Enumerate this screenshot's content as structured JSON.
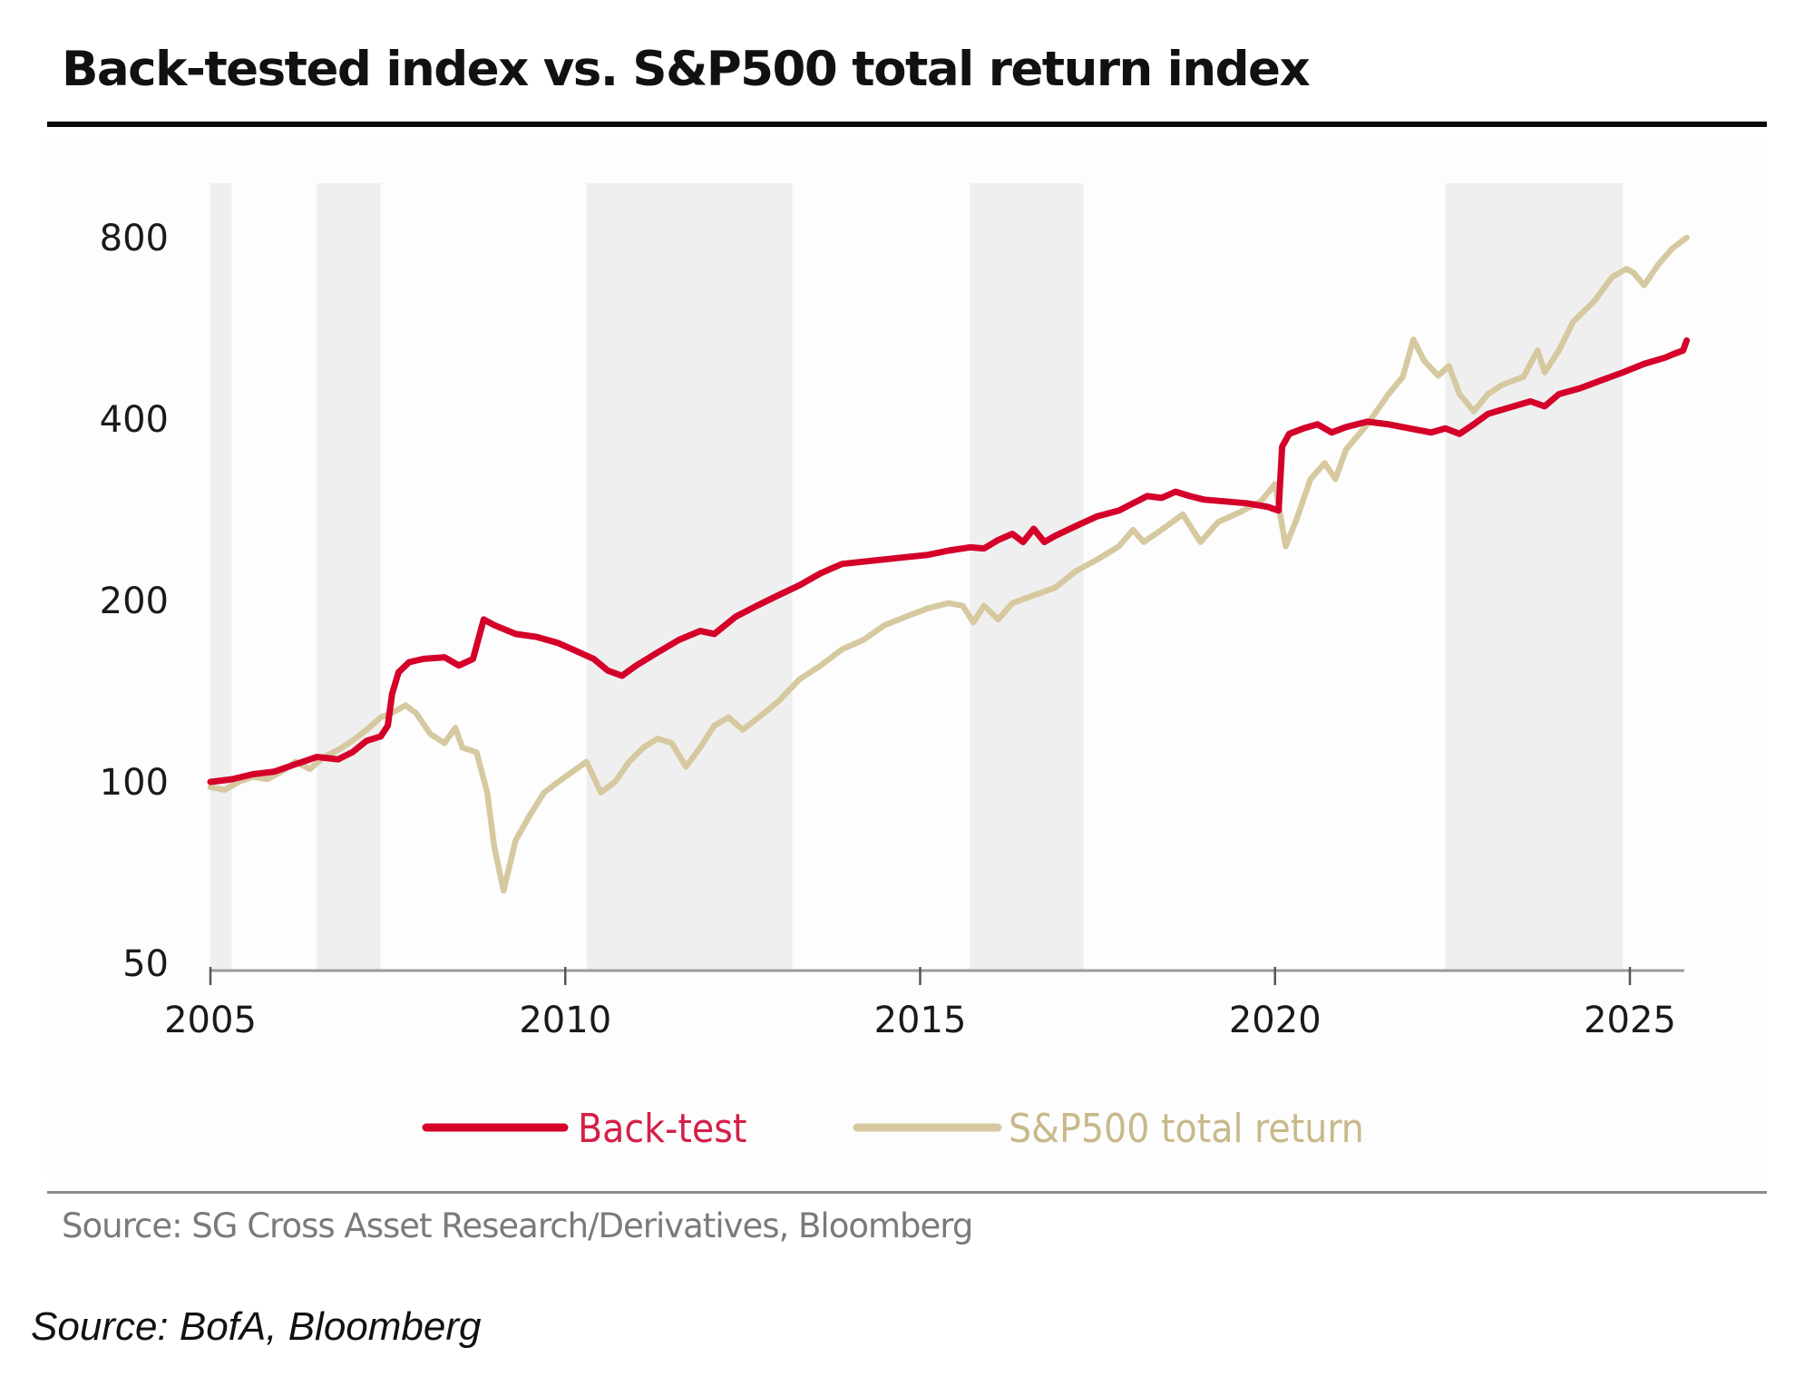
{
  "title": "Back-tested index vs. S&P500 total return index",
  "source_inner": "Source: SG Cross Asset Research/Derivatives, Bloomberg",
  "source_outer": "Source: BofA, Bloomberg",
  "colors": {
    "backtest": "#d4002a",
    "sp500": "#d6c9a0",
    "shading": "#f0eff0",
    "axis": "#9a9a9a"
  },
  "chart_data": {
    "type": "line",
    "title": "Back-tested index vs. S&P500 total return index",
    "xlabel": "",
    "ylabel": "",
    "y_scale": "log",
    "ylim": [
      50,
      800
    ],
    "xlim": [
      2005,
      2025.8
    ],
    "x_ticks": [
      2005,
      2010,
      2015,
      2020,
      2025
    ],
    "x_tick_labels": [
      "2005",
      "2010",
      "2015",
      "2020",
      "2025"
    ],
    "y_ticks": [
      50,
      100,
      200,
      400,
      800
    ],
    "y_tick_labels": [
      "50",
      "100",
      "200",
      "400",
      "800"
    ],
    "grid": false,
    "legend_position": "bottom-center",
    "shaded_periods": [
      [
        2005.0,
        2005.3
      ],
      [
        2006.5,
        2007.4
      ],
      [
        2010.3,
        2013.2
      ],
      [
        2015.7,
        2017.3
      ],
      [
        2022.4,
        2024.9
      ]
    ],
    "series": [
      {
        "name": "Back-test",
        "points": [
          [
            2005.0,
            100
          ],
          [
            2005.3,
            101
          ],
          [
            2005.6,
            103
          ],
          [
            2005.9,
            104
          ],
          [
            2006.2,
            107
          ],
          [
            2006.5,
            110
          ],
          [
            2006.8,
            109
          ],
          [
            2007.0,
            112
          ],
          [
            2007.2,
            117
          ],
          [
            2007.4,
            119
          ],
          [
            2007.5,
            124
          ],
          [
            2007.56,
            140
          ],
          [
            2007.65,
            152
          ],
          [
            2007.8,
            158
          ],
          [
            2008.0,
            160
          ],
          [
            2008.3,
            161
          ],
          [
            2008.5,
            156
          ],
          [
            2008.7,
            160
          ],
          [
            2008.85,
            186
          ],
          [
            2009.0,
            182
          ],
          [
            2009.3,
            176
          ],
          [
            2009.6,
            174
          ],
          [
            2009.9,
            170
          ],
          [
            2010.1,
            166
          ],
          [
            2010.4,
            160
          ],
          [
            2010.6,
            153
          ],
          [
            2010.8,
            150
          ],
          [
            2011.0,
            156
          ],
          [
            2011.3,
            164
          ],
          [
            2011.6,
            172
          ],
          [
            2011.9,
            178
          ],
          [
            2012.1,
            176
          ],
          [
            2012.4,
            188
          ],
          [
            2012.7,
            196
          ],
          [
            2013.0,
            204
          ],
          [
            2013.3,
            212
          ],
          [
            2013.6,
            222
          ],
          [
            2013.9,
            230
          ],
          [
            2014.2,
            232
          ],
          [
            2014.5,
            234
          ],
          [
            2014.8,
            236
          ],
          [
            2015.1,
            238
          ],
          [
            2015.4,
            242
          ],
          [
            2015.7,
            245
          ],
          [
            2015.9,
            244
          ],
          [
            2016.1,
            252
          ],
          [
            2016.3,
            258
          ],
          [
            2016.45,
            250
          ],
          [
            2016.6,
            263
          ],
          [
            2016.75,
            250
          ],
          [
            2016.9,
            256
          ],
          [
            2017.2,
            266
          ],
          [
            2017.5,
            276
          ],
          [
            2017.8,
            282
          ],
          [
            2018.0,
            290
          ],
          [
            2018.2,
            298
          ],
          [
            2018.4,
            296
          ],
          [
            2018.6,
            303
          ],
          [
            2018.8,
            298
          ],
          [
            2019.0,
            294
          ],
          [
            2019.3,
            292
          ],
          [
            2019.6,
            290
          ],
          [
            2019.9,
            286
          ],
          [
            2020.05,
            282
          ],
          [
            2020.1,
            360
          ],
          [
            2020.2,
            378
          ],
          [
            2020.4,
            386
          ],
          [
            2020.6,
            392
          ],
          [
            2020.8,
            380
          ],
          [
            2021.0,
            388
          ],
          [
            2021.3,
            396
          ],
          [
            2021.6,
            392
          ],
          [
            2021.9,
            386
          ],
          [
            2022.2,
            380
          ],
          [
            2022.4,
            386
          ],
          [
            2022.6,
            378
          ],
          [
            2022.8,
            392
          ],
          [
            2023.0,
            408
          ],
          [
            2023.3,
            418
          ],
          [
            2023.6,
            428
          ],
          [
            2023.8,
            420
          ],
          [
            2024.0,
            440
          ],
          [
            2024.3,
            450
          ],
          [
            2024.6,
            464
          ],
          [
            2024.9,
            478
          ],
          [
            2025.2,
            494
          ],
          [
            2025.5,
            506
          ],
          [
            2025.6,
            512
          ],
          [
            2025.75,
            520
          ],
          [
            2025.8,
            540
          ]
        ]
      },
      {
        "name": "S&P500 total return",
        "points": [
          [
            2005.0,
            98
          ],
          [
            2005.2,
            97
          ],
          [
            2005.4,
            100
          ],
          [
            2005.6,
            102
          ],
          [
            2005.8,
            101
          ],
          [
            2006.0,
            104
          ],
          [
            2006.2,
            108
          ],
          [
            2006.4,
            105
          ],
          [
            2006.6,
            110
          ],
          [
            2006.8,
            113
          ],
          [
            2007.0,
            117
          ],
          [
            2007.2,
            122
          ],
          [
            2007.4,
            128
          ],
          [
            2007.55,
            130
          ],
          [
            2007.75,
            134
          ],
          [
            2007.9,
            130
          ],
          [
            2008.1,
            120
          ],
          [
            2008.3,
            116
          ],
          [
            2008.45,
            123
          ],
          [
            2008.55,
            114
          ],
          [
            2008.75,
            112
          ],
          [
            2008.9,
            96
          ],
          [
            2009.0,
            78
          ],
          [
            2009.13,
            66
          ],
          [
            2009.3,
            80
          ],
          [
            2009.5,
            88
          ],
          [
            2009.7,
            96
          ],
          [
            2009.9,
            100
          ],
          [
            2010.1,
            104
          ],
          [
            2010.3,
            108
          ],
          [
            2010.5,
            96
          ],
          [
            2010.7,
            100
          ],
          [
            2010.9,
            108
          ],
          [
            2011.1,
            114
          ],
          [
            2011.3,
            118
          ],
          [
            2011.5,
            116
          ],
          [
            2011.7,
            106
          ],
          [
            2011.9,
            114
          ],
          [
            2012.1,
            124
          ],
          [
            2012.3,
            128
          ],
          [
            2012.5,
            122
          ],
          [
            2012.8,
            130
          ],
          [
            2013.0,
            136
          ],
          [
            2013.3,
            148
          ],
          [
            2013.6,
            156
          ],
          [
            2013.9,
            166
          ],
          [
            2014.2,
            172
          ],
          [
            2014.5,
            182
          ],
          [
            2014.8,
            188
          ],
          [
            2015.1,
            194
          ],
          [
            2015.4,
            198
          ],
          [
            2015.6,
            196
          ],
          [
            2015.75,
            184
          ],
          [
            2015.9,
            196
          ],
          [
            2016.1,
            186
          ],
          [
            2016.3,
            198
          ],
          [
            2016.6,
            204
          ],
          [
            2016.9,
            210
          ],
          [
            2017.2,
            224
          ],
          [
            2017.5,
            234
          ],
          [
            2017.8,
            246
          ],
          [
            2018.0,
            262
          ],
          [
            2018.15,
            250
          ],
          [
            2018.4,
            262
          ],
          [
            2018.7,
            278
          ],
          [
            2018.95,
            250
          ],
          [
            2019.2,
            270
          ],
          [
            2019.5,
            280
          ],
          [
            2019.8,
            292
          ],
          [
            2020.0,
            312
          ],
          [
            2020.15,
            246
          ],
          [
            2020.3,
            272
          ],
          [
            2020.5,
            318
          ],
          [
            2020.7,
            338
          ],
          [
            2020.85,
            318
          ],
          [
            2021.0,
            356
          ],
          [
            2021.3,
            392
          ],
          [
            2021.6,
            440
          ],
          [
            2021.8,
            470
          ],
          [
            2021.95,
            542
          ],
          [
            2022.1,
            500
          ],
          [
            2022.3,
            472
          ],
          [
            2022.45,
            490
          ],
          [
            2022.6,
            440
          ],
          [
            2022.8,
            412
          ],
          [
            2023.0,
            440
          ],
          [
            2023.2,
            456
          ],
          [
            2023.5,
            470
          ],
          [
            2023.7,
            520
          ],
          [
            2023.8,
            478
          ],
          [
            2024.0,
            520
          ],
          [
            2024.2,
            580
          ],
          [
            2024.5,
            628
          ],
          [
            2024.75,
            688
          ],
          [
            2024.95,
            710
          ],
          [
            2025.05,
            700
          ],
          [
            2025.2,
            667
          ],
          [
            2025.4,
            722
          ],
          [
            2025.6,
            768
          ],
          [
            2025.8,
            800
          ]
        ]
      }
    ]
  }
}
